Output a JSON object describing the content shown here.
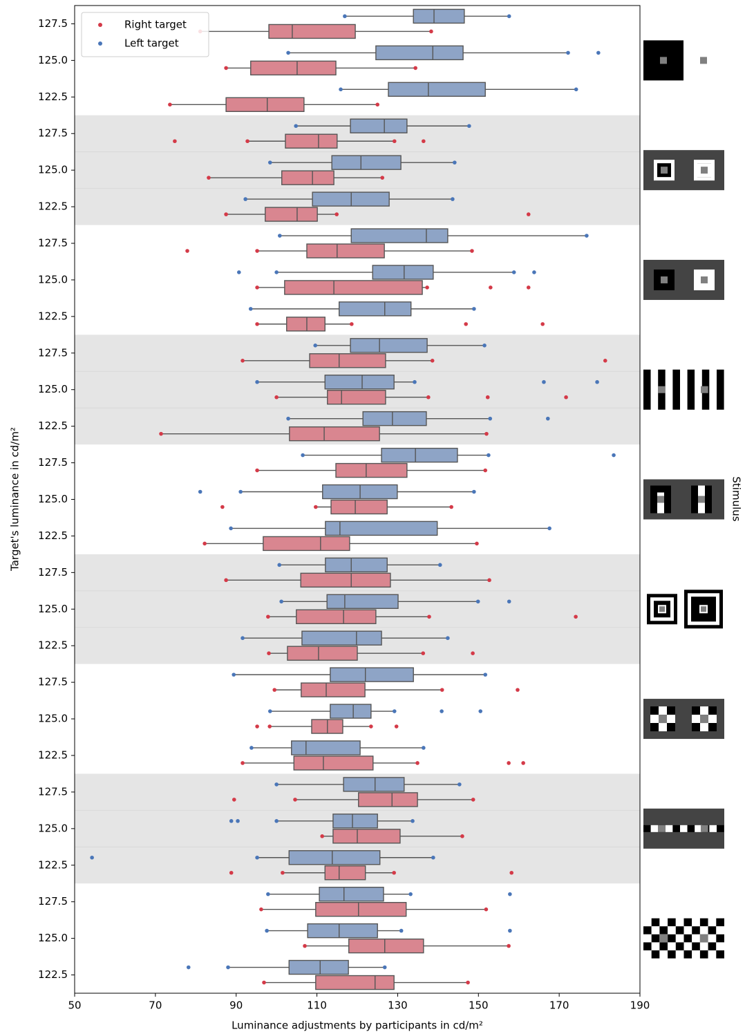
{
  "chart_data": {
    "type": "box",
    "xlabel": "Luminance adjustments by participants in cd/m²",
    "ylabel": "Target's luminance in cd/m²",
    "right_label": "Stimulus",
    "xlim": [
      50,
      190
    ],
    "xticks": [
      50,
      70,
      90,
      110,
      130,
      150,
      170,
      190
    ],
    "legend": "upper left",
    "categories": [
      "127.5",
      "125.0",
      "122.5",
      "127.5",
      "125.0",
      "122.5",
      "127.5",
      "125.0",
      "122.5",
      "127.5",
      "125.0",
      "122.5",
      "127.5",
      "125.0",
      "122.5",
      "127.5",
      "125.0",
      "122.5",
      "127.5",
      "125.0",
      "122.5",
      "127.5",
      "125.0",
      "122.5",
      "127.5",
      "125.0",
      "122.5"
    ],
    "series": [
      {
        "name": "Right target",
        "color": "#d43a48",
        "box_color": "#d98690",
        "boxes": [
          {
            "whislo": 81.1,
            "q1": 98.1,
            "med": 103.9,
            "q3": 119.5,
            "whishi": 138.3,
            "fliers": []
          },
          {
            "whislo": 87.5,
            "q1": 93.6,
            "med": 105.1,
            "q3": 114.7,
            "whishi": 134.4,
            "fliers": []
          },
          {
            "whislo": 73.6,
            "q1": 87.5,
            "med": 97.7,
            "q3": 106.8,
            "whishi": 125.0,
            "fliers": []
          },
          {
            "whislo": 92.8,
            "q1": 102.2,
            "med": 110.4,
            "q3": 115.0,
            "whishi": 129.2,
            "fliers": [
              74.8,
              136.4
            ]
          },
          {
            "whislo": 83.2,
            "q1": 101.3,
            "med": 108.9,
            "q3": 114.2,
            "whishi": 126.2,
            "fliers": []
          },
          {
            "whislo": 87.5,
            "q1": 97.2,
            "med": 105.1,
            "q3": 110.1,
            "whishi": 114.9,
            "fliers": [
              162.4
            ]
          },
          {
            "whislo": 95.2,
            "q1": 107.5,
            "med": 115.0,
            "q3": 126.7,
            "whishi": 148.4,
            "fliers": [
              77.9
            ]
          },
          {
            "whislo": 95.2,
            "q1": 102.0,
            "med": 114.2,
            "q3": 136.1,
            "whishi": 137.3,
            "fliers": [
              153.0,
              162.4
            ]
          },
          {
            "whislo": 95.2,
            "q1": 102.5,
            "med": 107.5,
            "q3": 112.0,
            "whishi": 118.6,
            "fliers": [
              146.9,
              165.9
            ]
          },
          {
            "whislo": 91.6,
            "q1": 108.2,
            "med": 115.5,
            "q3": 127.0,
            "whishi": 138.6,
            "fliers": [
              181.4
            ]
          },
          {
            "whislo": 100.0,
            "q1": 112.6,
            "med": 116.1,
            "q3": 127.0,
            "whishi": 137.6,
            "fliers": [
              152.3,
              171.7
            ]
          },
          {
            "whislo": 71.4,
            "q1": 103.2,
            "med": 111.8,
            "q3": 125.5,
            "whishi": 152.0,
            "fliers": []
          },
          {
            "whislo": 95.2,
            "q1": 114.7,
            "med": 122.2,
            "q3": 132.3,
            "whishi": 151.7,
            "fliers": []
          },
          {
            "whislo": 109.7,
            "q1": 113.5,
            "med": 119.5,
            "q3": 127.4,
            "whishi": 143.3,
            "fliers": [
              86.6
            ]
          },
          {
            "whislo": 82.2,
            "q1": 96.7,
            "med": 110.9,
            "q3": 118.1,
            "whishi": 149.6,
            "fliers": []
          },
          {
            "whislo": 87.5,
            "q1": 106.0,
            "med": 118.5,
            "q3": 128.2,
            "whishi": 152.7,
            "fliers": []
          },
          {
            "whislo": 97.9,
            "q1": 104.9,
            "med": 116.6,
            "q3": 124.6,
            "whishi": 137.8,
            "fliers": [
              174.1
            ]
          },
          {
            "whislo": 98.1,
            "q1": 102.7,
            "med": 110.4,
            "q3": 120.0,
            "whishi": 136.3,
            "fliers": [
              148.6
            ]
          },
          {
            "whislo": 99.5,
            "q1": 106.1,
            "med": 112.3,
            "q3": 121.9,
            "whishi": 141.0,
            "fliers": [
              159.7
            ]
          },
          {
            "whislo": 98.3,
            "q1": 108.7,
            "med": 112.6,
            "q3": 116.4,
            "whishi": 123.4,
            "fliers": [
              95.2,
              129.7
            ]
          },
          {
            "whislo": 91.6,
            "q1": 104.3,
            "med": 111.6,
            "q3": 123.9,
            "whishi": 134.9,
            "fliers": [
              157.5,
              161.1
            ]
          },
          {
            "whislo": 104.6,
            "q1": 120.3,
            "med": 128.6,
            "q3": 134.9,
            "whishi": 148.7,
            "fliers": [
              89.5
            ]
          },
          {
            "whislo": 111.3,
            "q1": 114.0,
            "med": 120.0,
            "q3": 130.6,
            "whishi": 146.0,
            "fliers": []
          },
          {
            "whislo": 101.5,
            "q1": 112.0,
            "med": 115.5,
            "q3": 122.0,
            "whishi": 129.1,
            "fliers": [
              88.8,
              158.2
            ]
          },
          {
            "whislo": 96.2,
            "q1": 109.7,
            "med": 120.3,
            "q3": 132.1,
            "whishi": 151.9,
            "fliers": []
          },
          {
            "whislo": 107.0,
            "q1": 117.9,
            "med": 126.8,
            "q3": 136.4,
            "whishi": 157.5,
            "fliers": []
          },
          {
            "whislo": 96.9,
            "q1": 109.7,
            "med": 124.4,
            "q3": 129.1,
            "whishi": 147.4,
            "fliers": []
          }
        ]
      },
      {
        "name": "Left target",
        "color": "#4a76b8",
        "box_color": "#8ea4c6",
        "boxes": [
          {
            "whislo": 116.9,
            "q1": 133.9,
            "med": 139.0,
            "q3": 146.5,
            "whishi": 157.6,
            "fliers": []
          },
          {
            "whislo": 102.9,
            "q1": 124.6,
            "med": 138.7,
            "q3": 146.2,
            "whishi": 172.2,
            "fliers": [
              179.7
            ]
          },
          {
            "whislo": 115.9,
            "q1": 127.7,
            "med": 137.6,
            "q3": 151.7,
            "whishi": 174.2,
            "fliers": []
          },
          {
            "whislo": 104.8,
            "q1": 118.3,
            "med": 126.7,
            "q3": 132.3,
            "whishi": 147.7,
            "fliers": []
          },
          {
            "whislo": 98.4,
            "q1": 113.7,
            "med": 120.9,
            "q3": 130.8,
            "whishi": 144.1,
            "fliers": []
          },
          {
            "whislo": 92.3,
            "q1": 108.9,
            "med": 118.5,
            "q3": 127.9,
            "whishi": 143.6,
            "fliers": []
          },
          {
            "whislo": 100.8,
            "q1": 118.5,
            "med": 137.1,
            "q3": 142.4,
            "whishi": 176.8,
            "fliers": []
          },
          {
            "whislo": 100.0,
            "q1": 123.8,
            "med": 131.6,
            "q3": 138.8,
            "whishi": 158.8,
            "fliers": [
              90.7,
              163.8
            ]
          },
          {
            "whislo": 93.6,
            "q1": 115.5,
            "med": 126.8,
            "q3": 133.3,
            "whishi": 148.9,
            "fliers": []
          },
          {
            "whislo": 109.6,
            "q1": 118.3,
            "med": 125.5,
            "q3": 137.3,
            "whishi": 151.5,
            "fliers": []
          },
          {
            "whislo": 95.2,
            "q1": 112.0,
            "med": 121.2,
            "q3": 129.1,
            "whishi": 134.2,
            "fliers": [
              166.2,
              179.4
            ]
          },
          {
            "whislo": 102.9,
            "q1": 121.4,
            "med": 128.7,
            "q3": 137.1,
            "whishi": 152.9,
            "fliers": [
              167.2
            ]
          },
          {
            "whislo": 106.5,
            "q1": 126.0,
            "med": 134.4,
            "q3": 144.8,
            "whishi": 152.5,
            "fliers": [
              183.5
            ]
          },
          {
            "whislo": 91.1,
            "q1": 111.4,
            "med": 120.7,
            "q3": 129.9,
            "whishi": 148.9,
            "fliers": [
              81.1
            ]
          },
          {
            "whislo": 88.7,
            "q1": 112.1,
            "med": 115.7,
            "q3": 139.8,
            "whishi": 167.6,
            "fliers": []
          },
          {
            "whislo": 100.7,
            "q1": 112.1,
            "med": 118.5,
            "q3": 127.4,
            "whishi": 140.5,
            "fliers": []
          },
          {
            "whislo": 101.2,
            "q1": 112.5,
            "med": 116.9,
            "q3": 130.1,
            "whishi": 149.9,
            "fliers": [
              157.6
            ]
          },
          {
            "whislo": 91.6,
            "q1": 106.3,
            "med": 119.8,
            "q3": 126.0,
            "whishi": 142.4,
            "fliers": []
          },
          {
            "whislo": 89.4,
            "q1": 113.3,
            "med": 122.0,
            "q3": 133.9,
            "whishi": 151.7,
            "fliers": []
          },
          {
            "whislo": 98.4,
            "q1": 113.3,
            "med": 119.0,
            "q3": 123.4,
            "whishi": 129.2,
            "fliers": [
              140.9,
              150.5
            ]
          },
          {
            "whislo": 93.8,
            "q1": 103.7,
            "med": 107.3,
            "q3": 120.7,
            "whishi": 136.4,
            "fliers": []
          },
          {
            "whislo": 100.0,
            "q1": 116.6,
            "med": 124.4,
            "q3": 131.6,
            "whishi": 145.3,
            "fliers": []
          },
          {
            "whislo": 100.0,
            "q1": 114.0,
            "med": 118.8,
            "q3": 125.0,
            "whishi": 133.7,
            "fliers": [
              88.8,
              90.4
            ]
          },
          {
            "whislo": 95.2,
            "q1": 103.1,
            "med": 113.8,
            "q3": 125.6,
            "whishi": 138.8,
            "fliers": [
              54.3
            ]
          },
          {
            "whislo": 97.9,
            "q1": 110.6,
            "med": 116.7,
            "q3": 126.5,
            "whishi": 133.2,
            "fliers": [
              157.8
            ]
          },
          {
            "whislo": 97.6,
            "q1": 107.7,
            "med": 115.5,
            "q3": 125.0,
            "whishi": 130.9,
            "fliers": [
              157.8
            ]
          },
          {
            "whislo": 88.0,
            "q1": 103.1,
            "med": 110.8,
            "q3": 117.8,
            "whishi": 126.8,
            "fliers": [
              78.2
            ]
          }
        ]
      }
    ]
  }
}
